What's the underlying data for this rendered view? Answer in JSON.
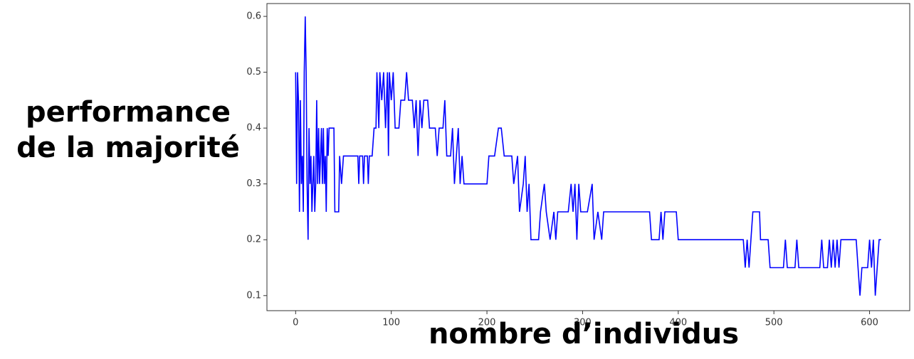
{
  "chart_data": {
    "type": "line",
    "ylabel": [
      "performance",
      "de la majorité"
    ],
    "xlabel": "nombre d’individus",
    "x": [
      0,
      1,
      2,
      3,
      4,
      5,
      6,
      7,
      8,
      9,
      10,
      11,
      12,
      13,
      14,
      15,
      16,
      17,
      18,
      19,
      20,
      21,
      22,
      23,
      24,
      25,
      26,
      27,
      28,
      29,
      30,
      31,
      32,
      33,
      34,
      35,
      40,
      41,
      45,
      46,
      48,
      50,
      65,
      66,
      67,
      70,
      71,
      72,
      75,
      76,
      77,
      80,
      82,
      84,
      85,
      87,
      88,
      90,
      92,
      94,
      96,
      97,
      98,
      100,
      102,
      104,
      108,
      110,
      114,
      116,
      118,
      122,
      124,
      126,
      128,
      130,
      132,
      134,
      138,
      140,
      146,
      148,
      150,
      154,
      156,
      158,
      162,
      164,
      166,
      168,
      170,
      172,
      174,
      176,
      200,
      202,
      208,
      212,
      215,
      218,
      226,
      228,
      232,
      234,
      238,
      240,
      242,
      244,
      246,
      254,
      256,
      260,
      262,
      266,
      270,
      272,
      274,
      285,
      288,
      290,
      292,
      294,
      296,
      298,
      305,
      310,
      312,
      316,
      320,
      322,
      370,
      372,
      380,
      382,
      384,
      386,
      398,
      400,
      468,
      470,
      472,
      474,
      476,
      478,
      485,
      486,
      494,
      496,
      510,
      512,
      514,
      522,
      524,
      526,
      548,
      550,
      552,
      556,
      558,
      560,
      562,
      564,
      566,
      568,
      570,
      586,
      588,
      590,
      592,
      598,
      600,
      602,
      604,
      606,
      608,
      610,
      612
    ],
    "series": [
      {
        "color": "#0000ff",
        "values": [
          0.5,
          0.3,
          0.5,
          0.45,
          0.25,
          0.45,
          0.3,
          0.35,
          0.25,
          0.5,
          0.6,
          0.5,
          0.3,
          0.2,
          0.4,
          0.3,
          0.35,
          0.25,
          0.3,
          0.35,
          0.25,
          0.3,
          0.45,
          0.3,
          0.4,
          0.3,
          0.35,
          0.4,
          0.3,
          0.4,
          0.3,
          0.35,
          0.25,
          0.4,
          0.35,
          0.4,
          0.4,
          0.25,
          0.25,
          0.35,
          0.3,
          0.35,
          0.35,
          0.3,
          0.35,
          0.35,
          0.3,
          0.35,
          0.35,
          0.3,
          0.35,
          0.35,
          0.4,
          0.4,
          0.5,
          0.4,
          0.5,
          0.45,
          0.5,
          0.4,
          0.5,
          0.35,
          0.5,
          0.45,
          0.5,
          0.4,
          0.4,
          0.45,
          0.45,
          0.5,
          0.45,
          0.45,
          0.4,
          0.45,
          0.35,
          0.45,
          0.4,
          0.45,
          0.45,
          0.4,
          0.4,
          0.35,
          0.4,
          0.4,
          0.45,
          0.35,
          0.35,
          0.4,
          0.3,
          0.35,
          0.4,
          0.3,
          0.35,
          0.3,
          0.3,
          0.35,
          0.35,
          0.4,
          0.4,
          0.35,
          0.35,
          0.3,
          0.35,
          0.25,
          0.3,
          0.35,
          0.25,
          0.3,
          0.2,
          0.2,
          0.25,
          0.3,
          0.25,
          0.2,
          0.25,
          0.2,
          0.25,
          0.25,
          0.3,
          0.25,
          0.3,
          0.2,
          0.3,
          0.25,
          0.25,
          0.3,
          0.2,
          0.25,
          0.2,
          0.25,
          0.25,
          0.2,
          0.2,
          0.25,
          0.2,
          0.25,
          0.25,
          0.2,
          0.2,
          0.15,
          0.2,
          0.15,
          0.2,
          0.25,
          0.25,
          0.2,
          0.2,
          0.15,
          0.15,
          0.2,
          0.15,
          0.15,
          0.2,
          0.15,
          0.15,
          0.2,
          0.15,
          0.15,
          0.2,
          0.15,
          0.2,
          0.15,
          0.2,
          0.15,
          0.2,
          0.2,
          0.15,
          0.1,
          0.15,
          0.15,
          0.2,
          0.15,
          0.2,
          0.1,
          0.15,
          0.2,
          0.2
        ]
      }
    ],
    "xlim": [
      -30,
      642
    ],
    "xticks": [
      0,
      100,
      200,
      300,
      400,
      500,
      600
    ],
    "ylim": [
      0.073,
      0.623
    ],
    "yticks": [
      0.1,
      0.2,
      0.3,
      0.4,
      0.5,
      0.6
    ]
  }
}
